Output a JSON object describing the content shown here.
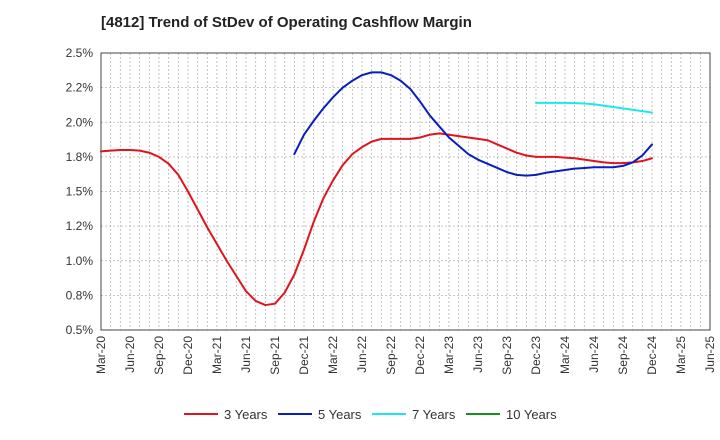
{
  "chart_data": {
    "type": "line",
    "title": "[4812]  Trend of StDev of Operating Cashflow Margin",
    "xlabel": "",
    "ylabel": "",
    "x_ticks": [
      "Mar-20",
      "Jun-20",
      "Sep-20",
      "Dec-20",
      "Mar-21",
      "Jun-21",
      "Sep-21",
      "Dec-21",
      "Mar-22",
      "Jun-22",
      "Sep-22",
      "Dec-22",
      "Mar-23",
      "Jun-23",
      "Sep-23",
      "Dec-23",
      "Mar-24",
      "Jun-24",
      "Sep-24",
      "Dec-24",
      "Mar-25",
      "Jun-25"
    ],
    "y_ticks": [
      {
        "value": 0.5,
        "label": "0.5%"
      },
      {
        "value": 0.75,
        "label": "0.8%"
      },
      {
        "value": 1.0,
        "label": "1.0%"
      },
      {
        "value": 1.25,
        "label": "1.2%"
      },
      {
        "value": 1.5,
        "label": "1.5%"
      },
      {
        "value": 1.75,
        "label": "1.8%"
      },
      {
        "value": 2.0,
        "label": "2.0%"
      },
      {
        "value": 2.25,
        "label": "2.2%"
      },
      {
        "value": 2.5,
        "label": "2.5%"
      }
    ],
    "ylim": [
      0.5,
      2.5
    ],
    "grid": true,
    "legend_position": "bottom",
    "series": [
      {
        "name": "3 Years",
        "color": "#e0141e",
        "points": [
          [
            "Mar-20",
            1.79
          ],
          [
            "Apr-20",
            1.795
          ],
          [
            "May-20",
            1.8
          ],
          [
            "Jun-20",
            1.8
          ],
          [
            "Jul-20",
            1.795
          ],
          [
            "Aug-20",
            1.78
          ],
          [
            "Sep-20",
            1.75
          ],
          [
            "Oct-20",
            1.7
          ],
          [
            "Nov-20",
            1.62
          ],
          [
            "Dec-20",
            1.5
          ],
          [
            "Jan-21",
            1.37
          ],
          [
            "Feb-21",
            1.24
          ],
          [
            "Mar-21",
            1.12
          ],
          [
            "Apr-21",
            1.0
          ],
          [
            "May-21",
            0.89
          ],
          [
            "Jun-21",
            0.78
          ],
          [
            "Jul-21",
            0.71
          ],
          [
            "Aug-21",
            0.68
          ],
          [
            "Sep-21",
            0.69
          ],
          [
            "Oct-21",
            0.77
          ],
          [
            "Nov-21",
            0.9
          ],
          [
            "Dec-21",
            1.08
          ],
          [
            "Jan-22",
            1.28
          ],
          [
            "Feb-22",
            1.45
          ],
          [
            "Mar-22",
            1.58
          ],
          [
            "Apr-22",
            1.69
          ],
          [
            "May-22",
            1.77
          ],
          [
            "Jun-22",
            1.82
          ],
          [
            "Jul-22",
            1.86
          ],
          [
            "Aug-22",
            1.88
          ],
          [
            "Sep-22",
            1.88
          ],
          [
            "Oct-22",
            1.88
          ],
          [
            "Nov-22",
            1.88
          ],
          [
            "Dec-22",
            1.89
          ],
          [
            "Jan-23",
            1.91
          ],
          [
            "Feb-23",
            1.92
          ],
          [
            "Mar-23",
            1.91
          ],
          [
            "Apr-23",
            1.9
          ],
          [
            "May-23",
            1.89
          ],
          [
            "Jun-23",
            1.88
          ],
          [
            "Jul-23",
            1.87
          ],
          [
            "Aug-23",
            1.84
          ],
          [
            "Sep-23",
            1.81
          ],
          [
            "Oct-23",
            1.78
          ],
          [
            "Nov-23",
            1.76
          ],
          [
            "Dec-23",
            1.75
          ],
          [
            "Jan-24",
            1.75
          ],
          [
            "Feb-24",
            1.75
          ],
          [
            "Mar-24",
            1.745
          ],
          [
            "Apr-24",
            1.74
          ],
          [
            "May-24",
            1.73
          ],
          [
            "Jun-24",
            1.72
          ],
          [
            "Jul-24",
            1.71
          ],
          [
            "Aug-24",
            1.705
          ],
          [
            "Sep-24",
            1.705
          ],
          [
            "Oct-24",
            1.71
          ],
          [
            "Nov-24",
            1.72
          ],
          [
            "Dec-24",
            1.74
          ]
        ]
      },
      {
        "name": "5 Years",
        "color": "#0a1ebe",
        "points": [
          [
            "Nov-21",
            1.77
          ],
          [
            "Dec-21",
            1.91
          ],
          [
            "Jan-22",
            2.01
          ],
          [
            "Feb-22",
            2.1
          ],
          [
            "Mar-22",
            2.18
          ],
          [
            "Apr-22",
            2.25
          ],
          [
            "May-22",
            2.3
          ],
          [
            "Jun-22",
            2.34
          ],
          [
            "Jul-22",
            2.36
          ],
          [
            "Aug-22",
            2.36
          ],
          [
            "Sep-22",
            2.34
          ],
          [
            "Oct-22",
            2.3
          ],
          [
            "Nov-22",
            2.24
          ],
          [
            "Dec-22",
            2.15
          ],
          [
            "Jan-23",
            2.05
          ],
          [
            "Feb-23",
            1.97
          ],
          [
            "Mar-23",
            1.89
          ],
          [
            "Apr-23",
            1.83
          ],
          [
            "May-23",
            1.77
          ],
          [
            "Jun-23",
            1.73
          ],
          [
            "Jul-23",
            1.7
          ],
          [
            "Aug-23",
            1.67
          ],
          [
            "Sep-23",
            1.64
          ],
          [
            "Oct-23",
            1.62
          ],
          [
            "Nov-23",
            1.615
          ],
          [
            "Dec-23",
            1.62
          ],
          [
            "Jan-24",
            1.635
          ],
          [
            "Feb-24",
            1.645
          ],
          [
            "Mar-24",
            1.655
          ],
          [
            "Apr-24",
            1.665
          ],
          [
            "May-24",
            1.67
          ],
          [
            "Jun-24",
            1.675
          ],
          [
            "Jul-24",
            1.675
          ],
          [
            "Aug-24",
            1.675
          ],
          [
            "Sep-24",
            1.685
          ],
          [
            "Oct-24",
            1.71
          ],
          [
            "Nov-24",
            1.76
          ],
          [
            "Dec-24",
            1.84
          ]
        ]
      },
      {
        "name": "7 Years",
        "color": "#1ee6f0",
        "points": [
          [
            "Dec-23",
            2.14
          ],
          [
            "Jan-24",
            2.14
          ],
          [
            "Feb-24",
            2.14
          ],
          [
            "Mar-24",
            2.14
          ],
          [
            "Apr-24",
            2.138
          ],
          [
            "May-24",
            2.135
          ],
          [
            "Jun-24",
            2.13
          ],
          [
            "Jul-24",
            2.12
          ],
          [
            "Aug-24",
            2.11
          ],
          [
            "Sep-24",
            2.1
          ],
          [
            "Oct-24",
            2.09
          ],
          [
            "Nov-24",
            2.08
          ],
          [
            "Dec-24",
            2.07
          ]
        ]
      },
      {
        "name": "10 Years",
        "color": "#1e8c1e",
        "points": []
      }
    ]
  }
}
